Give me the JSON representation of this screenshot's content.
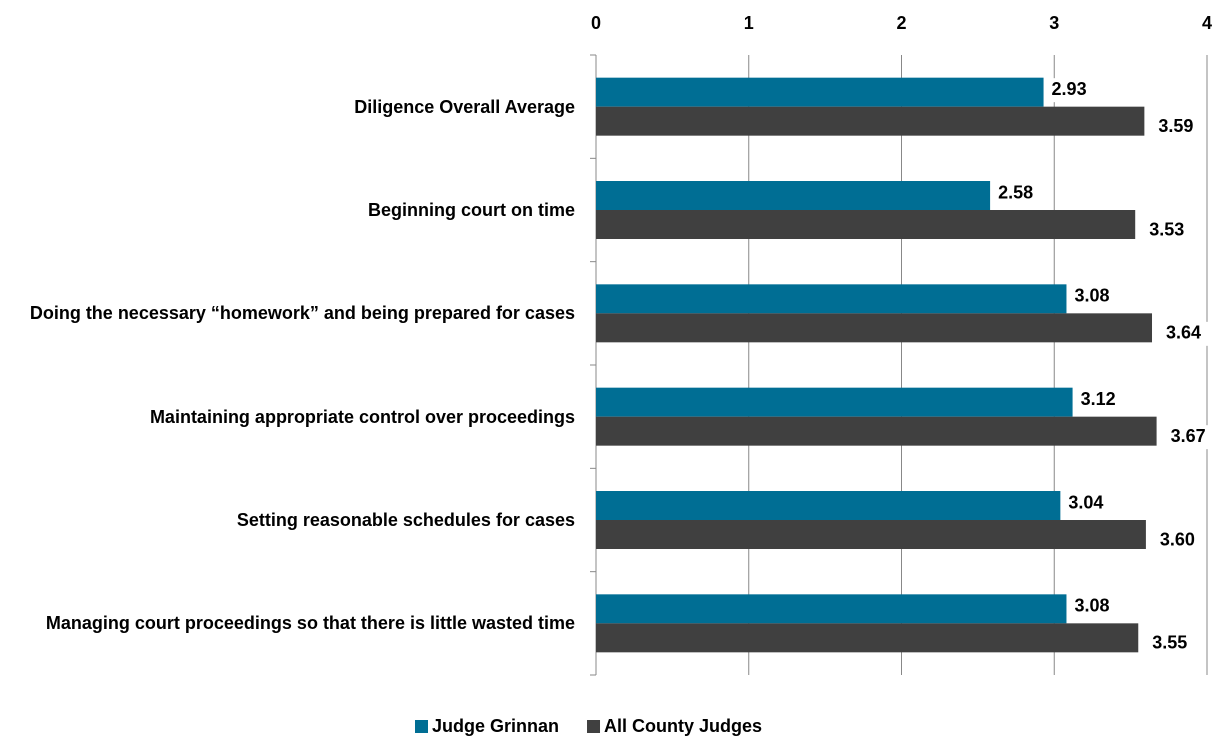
{
  "chart_data": {
    "type": "bar",
    "orientation": "horizontal",
    "categories": [
      "Diligence Overall Average",
      "Beginning court on time",
      "Doing the necessary “homework” and being prepared for cases",
      "Maintaining appropriate control over proceedings",
      "Setting reasonable schedules for cases",
      "Managing court proceedings so that there is little wasted time"
    ],
    "series": [
      {
        "name": "Judge Grinnan",
        "color": "#006e94",
        "values": [
          2.93,
          2.58,
          3.08,
          3.12,
          3.04,
          3.08
        ],
        "value_labels": [
          "2.93",
          "2.58",
          "3.08",
          "3.12",
          "3.04",
          "3.08"
        ]
      },
      {
        "name": "All County Judges",
        "color": "#404040",
        "values": [
          3.59,
          3.53,
          3.64,
          3.67,
          3.6,
          3.55
        ],
        "value_labels": [
          "3.59",
          "3.53",
          "3.64",
          "3.67",
          "3.60",
          "3.55"
        ]
      }
    ],
    "xlim": [
      0,
      4
    ],
    "xticks": [
      0,
      1,
      2,
      3,
      4
    ],
    "grid": true,
    "legend": "bottom"
  }
}
